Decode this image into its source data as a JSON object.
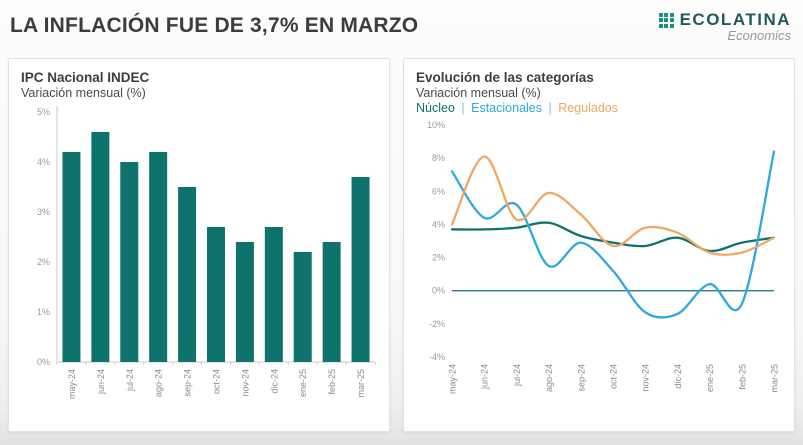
{
  "page": {
    "title": "LA INFLACIÓN FUE DE 3,7% EN MARZO"
  },
  "logo": {
    "name": "ECOLATINA",
    "tagline": "Economics",
    "mark_color": "#1d8f85"
  },
  "colors": {
    "bar_teal": "#0d736c",
    "nucleo": "#0d736c",
    "estacionales": "#2fa8dd",
    "regulados": "#f0a763",
    "zero_line": "#0f6e78",
    "axis_line": "#c9c9c9",
    "tick_label": "#9a9a9a",
    "x_label": "#8a8a8a"
  },
  "legend_separator": "|",
  "chart_data": [
    {
      "type": "bar",
      "title": "IPC Nacional INDEC",
      "subtitle": "Variación mensual (%)",
      "categories": [
        "may-24",
        "jun-24",
        "jul-24",
        "ago-24",
        "sep-24",
        "oct-24",
        "nov-24",
        "dic-24",
        "ene-25",
        "feb-25",
        "mar-25"
      ],
      "values": [
        4.2,
        4.6,
        4.0,
        4.2,
        3.5,
        2.7,
        2.4,
        2.7,
        2.2,
        2.4,
        3.7
      ],
      "xlabel": "",
      "ylabel": "",
      "ylim": [
        0,
        5
      ],
      "ytick_step": 1,
      "tick_suffix": "%",
      "grid": false,
      "legend_position": "none"
    },
    {
      "type": "line",
      "title": "Evolución de las categorías",
      "subtitle": "Variación mensual (%)",
      "categories": [
        "may-24",
        "jun-24",
        "jul-24",
        "ago-24",
        "sep-24",
        "oct-24",
        "nov-24",
        "dic-24",
        "ene-25",
        "feb-25",
        "mar-25"
      ],
      "series": [
        {
          "name": "Núcleo",
          "color": "#0d736c",
          "values": [
            3.7,
            3.7,
            3.8,
            4.1,
            3.3,
            2.9,
            2.7,
            3.2,
            2.4,
            2.9,
            3.2
          ]
        },
        {
          "name": "Estacionales",
          "color": "#2fa8dd",
          "values": [
            7.2,
            4.4,
            5.2,
            1.5,
            2.9,
            1.2,
            -1.3,
            -1.4,
            0.4,
            -0.8,
            8.4
          ]
        },
        {
          "name": "Regulados",
          "color": "#f0a763",
          "values": [
            4.0,
            8.1,
            4.3,
            5.9,
            4.6,
            2.7,
            3.8,
            3.5,
            2.3,
            2.3,
            3.2
          ]
        }
      ],
      "xlabel": "",
      "ylabel": "",
      "ylim": [
        -4,
        10
      ],
      "ytick_step": 2,
      "tick_suffix": "%",
      "grid": false,
      "zero_line": true,
      "legend_position": "top-inline"
    }
  ]
}
